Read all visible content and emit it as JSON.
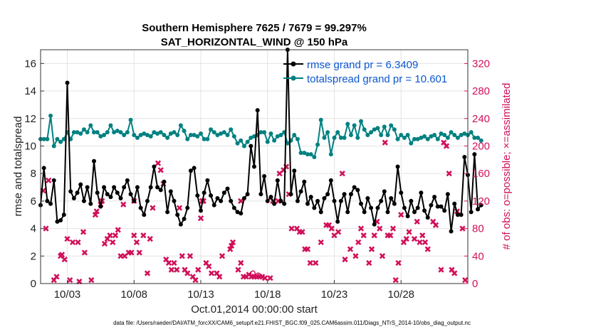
{
  "chart_data": {
    "type": "line",
    "title_line1": "Southern Hemisphere 7625 / 7679 = 99.297%",
    "title_line2": "SAT_HORIZONTAL_WIND @ 150 hPa",
    "xlabel": "Oct.01,2014 00:00:00 start",
    "ylabel_left": "rmse and totalspread",
    "ylabel_right": "# of obs: o=possible; ×=assimilated",
    "footnote": "data file: /Users/raeder/DAI/ATM_forcXX/CAM6_setup/f.e21.FHIST_BGC.f09_025.CAM6assim.011/Diags_NTrS_2014-10/obs_diag_output.nc",
    "xlim": [
      1,
      33
    ],
    "ylim_left": [
      0,
      17
    ],
    "ylim_right": [
      0,
      340
    ],
    "x_ticks": [
      3,
      8,
      13,
      18,
      23,
      28
    ],
    "x_tick_labels": [
      "10/03",
      "10/08",
      "10/13",
      "10/18",
      "10/23",
      "10/28"
    ],
    "y_left_ticks": [
      0,
      2,
      4,
      6,
      8,
      10,
      12,
      14,
      16
    ],
    "y_right_ticks": [
      0,
      40,
      80,
      120,
      160,
      200,
      240,
      280,
      320
    ],
    "grid": true,
    "legend_position": "top-right",
    "series": [
      {
        "name": "rmse grand pr = 6.3409",
        "color": "#000000",
        "marker": "filled-circle",
        "axis": "left",
        "x_start": 1.0,
        "x_step": 0.25,
        "values": [
          5.7,
          8.4,
          6.0,
          5.8,
          7.5,
          4.5,
          4.6,
          5.0,
          14.6,
          6.7,
          6.2,
          6.6,
          7.2,
          6.0,
          7.0,
          5.8,
          8.9,
          6.6,
          5.6,
          7.0,
          6.5,
          6.3,
          7.0,
          6.6,
          6.2,
          7.0,
          7.5,
          6.5,
          6.0,
          7.0,
          5.5,
          5.0,
          6.0,
          7.0,
          8.5,
          7.0,
          6.8,
          7.4,
          5.2,
          6.7,
          6.0,
          5.0,
          4.3,
          4.7,
          5.5,
          8.2,
          8.4,
          6.4,
          5.3,
          6.6,
          7.5,
          6.4,
          5.7,
          6.2,
          6.0,
          6.6,
          6.9,
          6.0,
          5.5,
          5.2,
          5.1,
          6.2,
          6.5,
          10.0,
          8.5,
          12.6,
          6.5,
          7.8,
          6.0,
          6.3,
          5.8,
          7.5,
          6.0,
          5.8,
          17.0,
          6.5,
          8.2,
          6.0,
          6.7,
          7.4,
          5.8,
          6.3,
          5.5,
          6.0,
          5.2,
          6.2,
          6.5,
          7.5,
          6.0,
          4.5,
          6.0,
          6.5,
          5.2,
          6.5,
          7.0,
          6.8,
          5.8,
          5.2,
          6.2,
          5.5,
          4.3,
          5.5,
          6.0,
          6.7,
          5.2,
          6.2,
          5.8,
          8.5,
          6.6,
          5.5,
          4.9,
          6.0,
          5.2,
          5.5,
          6.6,
          5.3,
          4.8,
          5.7,
          6.3,
          5.6,
          5.6,
          5.3,
          6.5,
          3.8,
          5.8,
          5.0,
          5.0,
          9.2,
          7.9,
          5.2,
          9.4,
          5.4,
          5.7
        ]
      },
      {
        "name": "totalspread grand pr = 10.601",
        "color": "#008080",
        "marker": "filled-circle",
        "axis": "left",
        "x_start": 1.0,
        "x_step": 0.25,
        "values": [
          10.5,
          10.5,
          10.5,
          12.2,
          10.0,
          10.5,
          10.3,
          10.5,
          11.0,
          10.5,
          11.0,
          11.0,
          10.9,
          11.2,
          11.0,
          11.5,
          11.0,
          11.0,
          10.7,
          10.8,
          11.0,
          11.5,
          11.0,
          11.1,
          11.0,
          10.8,
          11.0,
          11.9,
          10.8,
          10.6,
          10.8,
          10.9,
          10.8,
          10.7,
          11.0,
          10.9,
          11.0,
          10.8,
          10.6,
          10.9,
          11.0,
          10.8,
          11.5,
          11.1,
          10.5,
          10.8,
          10.8,
          10.7,
          10.9,
          10.5,
          10.5,
          11.2,
          11.0,
          10.8,
          10.9,
          11.0,
          10.8,
          11.2,
          10.7,
          10.2,
          10.4,
          10.0,
          10.3,
          10.6,
          10.7,
          10.8,
          11.0,
          11.0,
          10.3,
          10.9,
          10.4,
          10.7,
          10.8,
          11.0,
          10.2,
          10.4,
          10.8,
          10.5,
          9.5,
          9.5,
          9.4,
          9.4,
          9.2,
          10.1,
          11.9,
          10.6,
          11.0,
          9.4,
          10.6,
          11.0,
          10.6,
          10.6,
          11.6,
          10.8,
          11.5,
          10.6,
          11.8,
          11.2,
          10.8,
          11.0,
          11.2,
          11.3,
          10.8,
          11.4,
          10.8,
          11.5,
          11.2,
          10.5,
          10.8,
          10.6,
          10.8,
          10.2,
          10.5,
          10.5,
          10.6,
          10.7,
          10.5,
          10.7,
          10.8,
          10.5,
          10.9,
          10.8,
          10.6,
          11.0,
          10.8,
          10.6,
          10.8,
          10.9,
          10.8,
          11.0,
          10.6,
          10.6,
          10.4
        ]
      },
      {
        "name": "assimilated count",
        "color": "#d1105a",
        "marker": "x",
        "axis": "right",
        "points": [
          [
            1.2,
            135
          ],
          [
            1.4,
            80
          ],
          [
            1.6,
            150
          ],
          [
            2.0,
            5
          ],
          [
            2.2,
            10
          ],
          [
            2.5,
            40
          ],
          [
            2.6,
            42
          ],
          [
            2.8,
            35
          ],
          [
            3.0,
            65
          ],
          [
            3.2,
            5
          ],
          [
            3.4,
            60
          ],
          [
            3.8,
            60
          ],
          [
            3.9,
            3
          ],
          [
            4.2,
            75
          ],
          [
            4.3,
            45
          ],
          [
            4.8,
            5
          ],
          [
            5.1,
            100
          ],
          [
            5.2,
            105
          ],
          [
            5.5,
            115
          ],
          [
            5.6,
            120
          ],
          [
            5.8,
            58
          ],
          [
            6.0,
            65
          ],
          [
            6.2,
            70
          ],
          [
            6.4,
            60
          ],
          [
            6.6,
            70
          ],
          [
            6.8,
            78
          ],
          [
            7.0,
            40
          ],
          [
            7.2,
            115
          ],
          [
            7.3,
            40
          ],
          [
            7.6,
            45
          ],
          [
            7.8,
            45
          ],
          [
            8.0,
            120
          ],
          [
            8.0,
            70
          ],
          [
            8.2,
            60
          ],
          [
            8.4,
            45
          ],
          [
            8.7,
            70
          ],
          [
            9.0,
            15
          ],
          [
            9.2,
            65
          ],
          [
            9.4,
            110
          ],
          [
            9.8,
            175
          ],
          [
            10.0,
            165
          ],
          [
            10.2,
            145
          ],
          [
            10.4,
            35
          ],
          [
            10.6,
            30
          ],
          [
            10.8,
            20
          ],
          [
            11.0,
            30
          ],
          [
            11.2,
            20
          ],
          [
            11.4,
            110
          ],
          [
            11.6,
            40
          ],
          [
            11.8,
            20
          ],
          [
            12.0,
            15
          ],
          [
            12.2,
            40
          ],
          [
            12.4,
            10
          ],
          [
            12.6,
            5
          ],
          [
            12.8,
            20
          ],
          [
            13.0,
            95
          ],
          [
            13.1,
            120
          ],
          [
            13.2,
            120
          ],
          [
            13.4,
            30
          ],
          [
            13.6,
            25
          ],
          [
            13.8,
            15
          ],
          [
            14.2,
            15
          ],
          [
            14.4,
            10
          ],
          [
            14.6,
            40
          ],
          [
            15.2,
            50
          ],
          [
            15.3,
            55
          ],
          [
            15.4,
            60
          ],
          [
            15.8,
            20
          ],
          [
            16.0,
            120
          ],
          [
            16.0,
            30
          ],
          [
            16.2,
            10
          ],
          [
            16.4,
            10
          ],
          [
            16.6,
            13
          ],
          [
            16.8,
            10
          ],
          [
            17.0,
            10
          ],
          [
            17.2,
            10
          ],
          [
            17.4,
            10
          ],
          [
            17.6,
            10
          ],
          [
            17.8,
            8
          ],
          [
            18.2,
            8
          ],
          [
            18.4,
            120
          ],
          [
            18.8,
            120
          ],
          [
            18.9,
            160
          ],
          [
            19.2,
            165
          ],
          [
            19.4,
            170
          ],
          [
            19.6,
            130
          ],
          [
            19.8,
            80
          ],
          [
            20.2,
            80
          ],
          [
            20.4,
            75
          ],
          [
            20.6,
            75
          ],
          [
            20.8,
            50
          ],
          [
            21.0,
            50
          ],
          [
            21.2,
            30
          ],
          [
            21.6,
            30
          ],
          [
            22.0,
            60
          ],
          [
            22.4,
            85
          ],
          [
            22.6,
            85
          ],
          [
            22.8,
            80
          ],
          [
            23.0,
            70
          ],
          [
            23.3,
            75
          ],
          [
            23.6,
            160
          ],
          [
            23.8,
            35
          ],
          [
            24.2,
            50
          ],
          [
            24.6,
            40
          ],
          [
            24.8,
            60
          ],
          [
            25.0,
            80
          ],
          [
            25.2,
            70
          ],
          [
            25.6,
            30
          ],
          [
            25.8,
            50
          ],
          [
            26.0,
            70
          ],
          [
            26.2,
            90
          ],
          [
            26.4,
            80
          ],
          [
            26.6,
            40
          ],
          [
            26.8,
            205
          ],
          [
            27.0,
            70
          ],
          [
            27.2,
            70
          ],
          [
            27.4,
            80
          ],
          [
            27.6,
            5
          ],
          [
            27.8,
            30
          ],
          [
            28.0,
            100
          ],
          [
            28.2,
            60
          ],
          [
            28.4,
            65
          ],
          [
            28.6,
            75
          ],
          [
            29.0,
            65
          ],
          [
            29.2,
            90
          ],
          [
            29.4,
            60
          ],
          [
            29.6,
            70
          ],
          [
            29.8,
            60
          ],
          [
            30.0,
            50
          ],
          [
            30.4,
            90
          ],
          [
            30.6,
            85
          ],
          [
            31.0,
            20
          ],
          [
            31.2,
            205
          ],
          [
            31.4,
            200
          ],
          [
            31.6,
            160
          ],
          [
            31.8,
            20
          ],
          [
            32.0,
            15
          ],
          [
            32.2,
            105
          ],
          [
            32.6,
            80
          ],
          [
            32.8,
            5
          ]
        ]
      },
      {
        "name": "possible count",
        "color": "#d1105a",
        "marker": "o",
        "axis": "right",
        "points": [
          [
            16.9,
            15
          ],
          [
            17.3,
            12
          ]
        ]
      }
    ]
  }
}
